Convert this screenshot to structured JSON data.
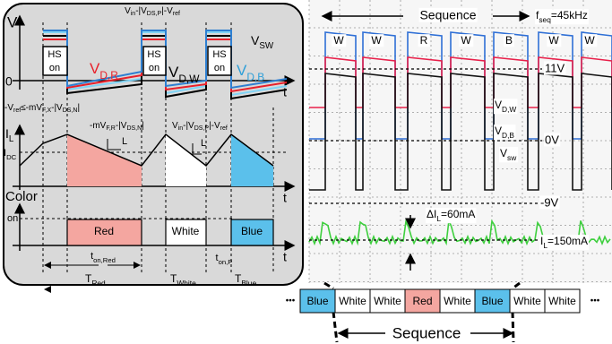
{
  "left": {
    "v_axis": "V",
    "top_label": [
      "V",
      {
        "sub": "in"
      },
      "-|V",
      {
        "sub": "DS,P"
      },
      "|-V",
      {
        "sub": "ref"
      }
    ],
    "vsw": [
      "V",
      {
        "sub": "SW"
      }
    ],
    "hs1": "HS",
    "on1": "on",
    "hs2": "HS",
    "on2": "on",
    "hs3": "HS",
    "on3": "on",
    "vdr": [
      "V",
      {
        "sub": "D,R"
      }
    ],
    "vdw": [
      "V",
      {
        "sub": "D,W"
      }
    ],
    "vdb": [
      "V",
      {
        "sub": "D,B"
      }
    ],
    "zero": "0",
    "t1": "t",
    "neg_label": [
      "-V",
      {
        "sub": "ref"
      },
      "≤-mV",
      {
        "sub": "F,X"
      },
      "-|V",
      {
        "sub": "DS,N"
      },
      "|"
    ],
    "il": [
      "I",
      {
        "sub": "L"
      }
    ],
    "idc": [
      "I",
      {
        "sub": "DC"
      }
    ],
    "fall_label": [
      "-mV",
      {
        "sub": "F,R"
      },
      "-|V",
      {
        "sub": "DS,N"
      },
      "|"
    ],
    "rise_label": [
      "V",
      {
        "sub": "in"
      },
      "-|V",
      {
        "sub": "DS,P"
      },
      "|-V",
      {
        "sub": "ref"
      }
    ],
    "l1": "L",
    "l2": "L",
    "t2": "t",
    "color": "Color",
    "on": "on",
    "t3": "t",
    "red": "Red",
    "white": "White",
    "blue": "Blue",
    "ton_red": [
      "t",
      {
        "sub": "on,Red"
      }
    ],
    "ton_p": [
      "t",
      {
        "sub": "on,P"
      }
    ],
    "t_red": [
      "T",
      {
        "sub": "Red"
      }
    ],
    "t_white": [
      "T",
      {
        "sub": "White"
      }
    ],
    "t_blue": [
      "T",
      {
        "sub": "Blue"
      }
    ]
  },
  "scope": {
    "sequence": "Sequence",
    "fseq": [
      "f",
      {
        "sub": "seq"
      },
      "=45kHz"
    ],
    "letters": [
      "W",
      "W",
      "R",
      "W",
      "B",
      "W",
      "W"
    ],
    "v11": "11V",
    "vdw": [
      "V",
      {
        "sub": "D,W"
      }
    ],
    "vdb": [
      "V",
      {
        "sub": "D,B"
      }
    ],
    "v0": "0V",
    "vsw": [
      "V",
      {
        "sub": "sw"
      }
    ],
    "vneg": "-9V",
    "dil": [
      "ΔI",
      {
        "sub": "L"
      },
      "=60mA"
    ],
    "il": [
      "I",
      {
        "sub": "L"
      },
      "=150mA"
    ]
  },
  "strip": {
    "dots_left": "•••",
    "cells": [
      "Blue",
      "White",
      "White",
      "Red",
      "White",
      "Blue",
      "White",
      "White"
    ],
    "dots_right": "•••",
    "sequence": "Sequence"
  }
}
